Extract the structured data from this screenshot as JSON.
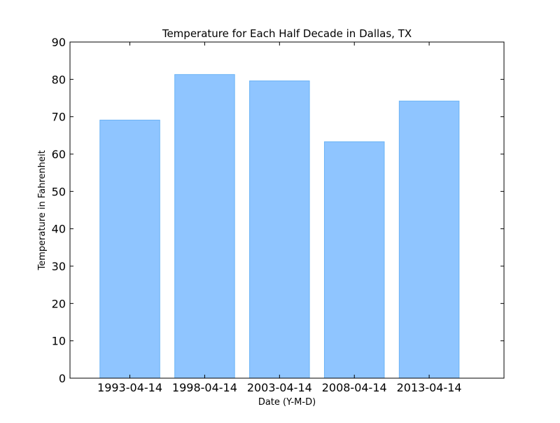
{
  "chart_data": {
    "type": "bar",
    "title": "Temperature for Each Half Decade in Dallas, TX",
    "xlabel": "Date (Y-M-D)",
    "ylabel": "Temperature in Fahrenheit",
    "categories": [
      "1993-04-14",
      "1998-04-14",
      "2003-04-14",
      "2008-04-14",
      "2013-04-14"
    ],
    "values": [
      69.1,
      81.3,
      79.6,
      63.3,
      74.2
    ],
    "ylim": [
      0,
      90
    ],
    "yticks": [
      0,
      10,
      20,
      30,
      40,
      50,
      60,
      70,
      80,
      90
    ],
    "grid": false,
    "legend": "none",
    "colors": {
      "bar_fill": "#8fc5ff",
      "bar_edge": "#6cb4f5",
      "axis": "#000000"
    }
  }
}
